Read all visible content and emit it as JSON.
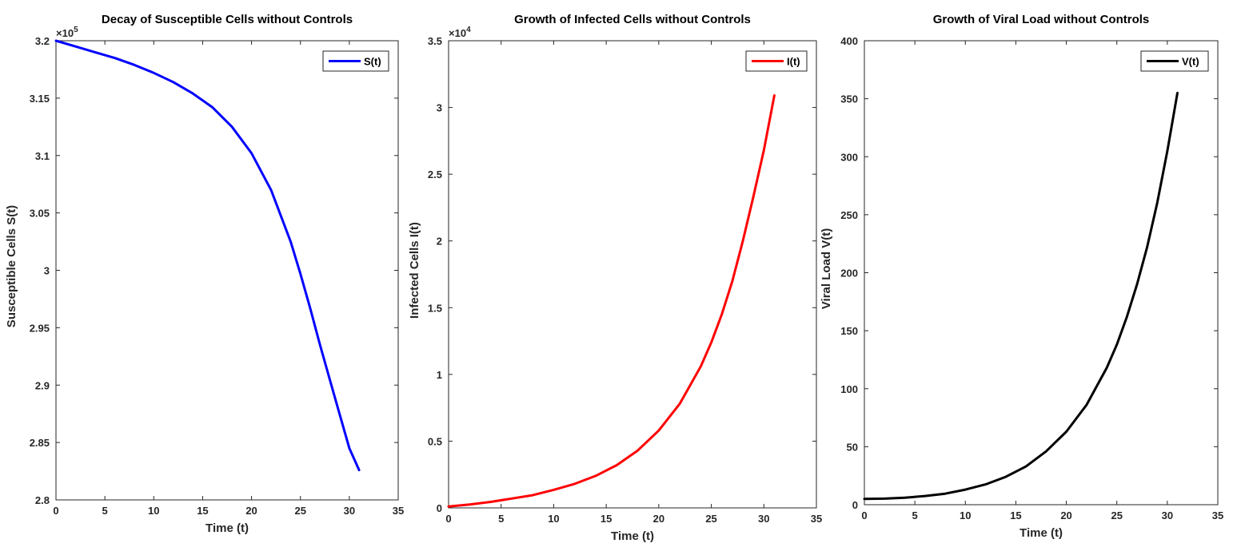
{
  "chart_data": [
    {
      "type": "line",
      "title": "Decay of Susceptible Cells without Controls",
      "xlabel": "Time (t)",
      "ylabel": "Susceptible Cells S(t)",
      "xlim": [
        0,
        35
      ],
      "ylim": [
        2.8,
        3.2
      ],
      "xticks": [
        0,
        5,
        10,
        15,
        20,
        25,
        30,
        35
      ],
      "yticks": [
        2.8,
        2.85,
        2.9,
        2.95,
        3,
        3.05,
        3.1,
        3.15,
        3.2
      ],
      "y_exponent": "5",
      "legend": "top-right",
      "series": [
        {
          "name": "S(t)",
          "color": "#0000ff",
          "x": [
            0,
            2,
            4,
            6,
            8,
            10,
            12,
            14,
            16,
            18,
            20,
            22,
            24,
            25,
            26,
            27,
            28,
            29,
            30,
            31
          ],
          "values": [
            3.2,
            3.195,
            3.19,
            3.185,
            3.179,
            3.172,
            3.164,
            3.154,
            3.142,
            3.125,
            3.102,
            3.07,
            3.025,
            2.997,
            2.967,
            2.935,
            2.905,
            2.875,
            2.845,
            2.826
          ]
        }
      ]
    },
    {
      "type": "line",
      "title": "Growth of Infected Cells without Controls",
      "xlabel": "Time (t)",
      "ylabel": "Infected Cells I(t)",
      "xlim": [
        0,
        35
      ],
      "ylim": [
        0,
        3.5
      ],
      "xticks": [
        0,
        5,
        10,
        15,
        20,
        25,
        30,
        35
      ],
      "yticks": [
        0,
        0.5,
        1,
        1.5,
        2,
        2.5,
        3,
        3.5
      ],
      "y_exponent": "4",
      "legend": "top-right",
      "series": [
        {
          "name": "I(t)",
          "color": "#ff0000",
          "x": [
            0,
            2,
            4,
            6,
            8,
            10,
            12,
            14,
            16,
            18,
            20,
            22,
            24,
            25,
            26,
            27,
            28,
            29,
            30,
            31
          ],
          "values": [
            0.01,
            0.025,
            0.045,
            0.07,
            0.095,
            0.135,
            0.18,
            0.24,
            0.32,
            0.43,
            0.58,
            0.78,
            1.06,
            1.24,
            1.45,
            1.7,
            2.0,
            2.33,
            2.68,
            3.09
          ]
        }
      ]
    },
    {
      "type": "line",
      "title": "Growth of Viral Load without Controls",
      "xlabel": "Time (t)",
      "ylabel": "Viral Load V(t)",
      "xlim": [
        0,
        35
      ],
      "ylim": [
        0,
        400
      ],
      "xticks": [
        0,
        5,
        10,
        15,
        20,
        25,
        30,
        35
      ],
      "yticks": [
        0,
        50,
        100,
        150,
        200,
        250,
        300,
        350,
        400
      ],
      "y_exponent": "",
      "legend": "top-right",
      "series": [
        {
          "name": "V(t)",
          "color": "#000000",
          "x": [
            0,
            2,
            4,
            6,
            8,
            10,
            12,
            14,
            16,
            18,
            20,
            22,
            24,
            25,
            26,
            27,
            28,
            29,
            30,
            31
          ],
          "values": [
            5,
            5.2,
            6,
            7.5,
            9.5,
            13,
            17.5,
            24,
            33,
            46,
            63,
            86,
            118,
            138,
            162,
            190,
            222,
            260,
            305,
            355
          ]
        }
      ]
    }
  ]
}
